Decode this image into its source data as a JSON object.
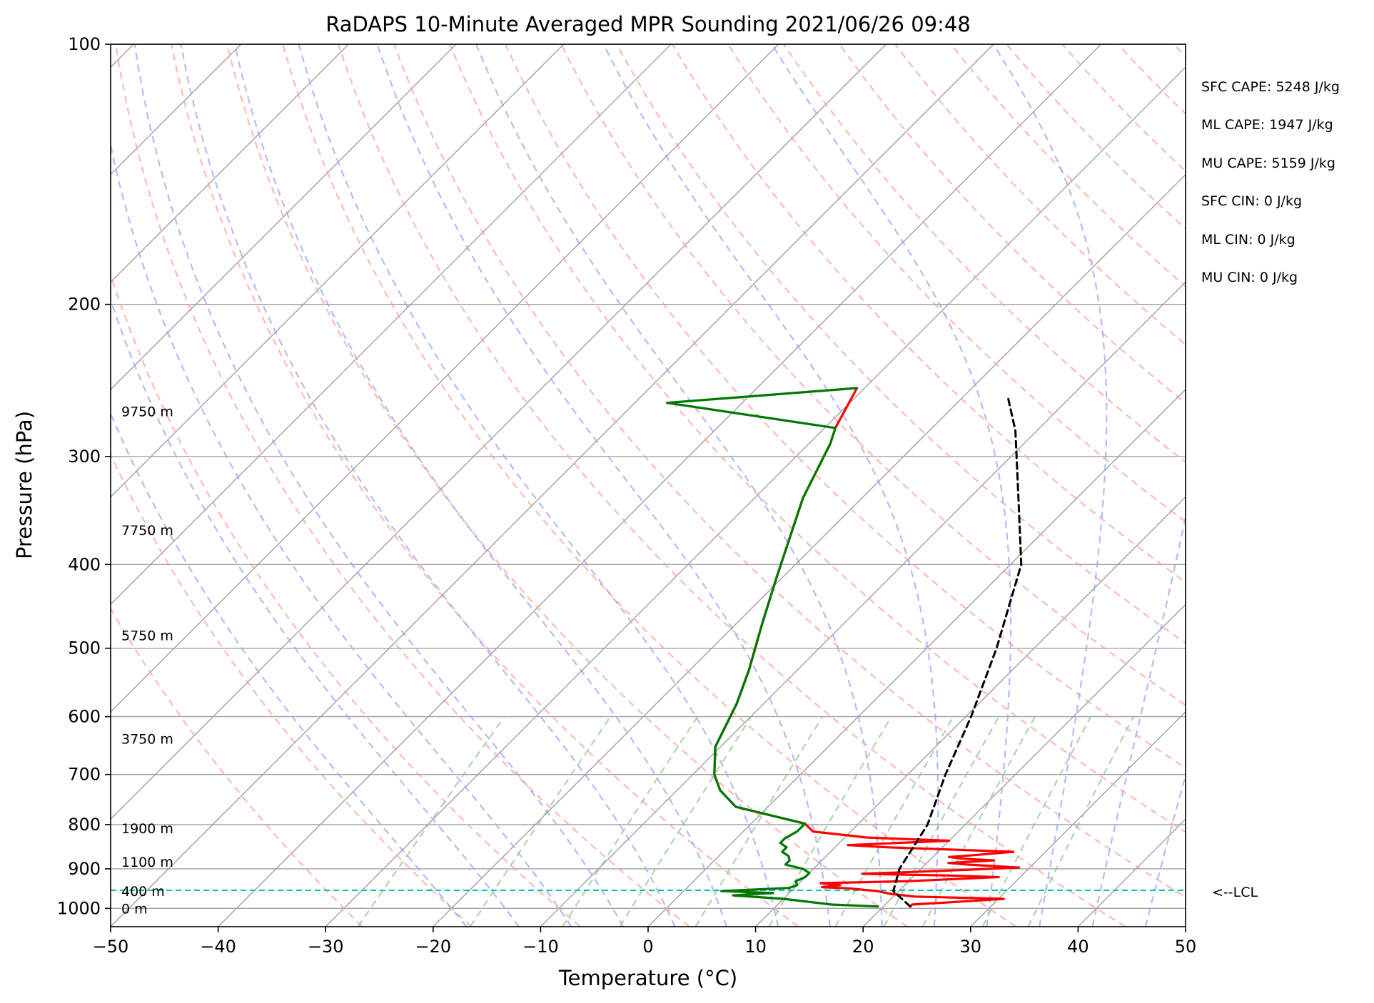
{
  "chart_data": {
    "type": "line",
    "title": "RaDAPS 10-Minute Averaged MPR Sounding 2021/06/26 09:48",
    "xlabel": "Temperature (°C)",
    "ylabel": "Pressure (hPa)",
    "xlim": [
      -50,
      50
    ],
    "ylim": [
      1050,
      100
    ],
    "y_scale": "log",
    "x_ticks": [
      "−50",
      "−40",
      "−30",
      "−20",
      "−10",
      "0",
      "10",
      "20",
      "30",
      "40",
      "50"
    ],
    "x_tick_values": [
      -50,
      -40,
      -30,
      -20,
      -10,
      0,
      10,
      20,
      30,
      40,
      50
    ],
    "y_ticks": [
      100,
      200,
      300,
      400,
      500,
      600,
      700,
      800,
      900,
      1000
    ],
    "grid": true,
    "colors": {
      "temperature": "#ff0000",
      "dewpoint": "#007700",
      "parcel": "#000000",
      "lcl": "#00bfbf",
      "isotherm": "#a0a0a0",
      "dry_adiabat": "#ffa0a0",
      "moist_adiabat": "#a0a0ff",
      "mixing_ratio": "#99cc99"
    },
    "series": [
      {
        "name": "Temperature",
        "points": [
          [
            22.5,
            995
          ],
          [
            22.5,
            990
          ],
          [
            28,
            980
          ],
          [
            30.5,
            975
          ],
          [
            22,
            969
          ],
          [
            19.5,
            962
          ],
          [
            18,
            955
          ],
          [
            15,
            948
          ],
          [
            12.5,
            945
          ],
          [
            14,
            940
          ],
          [
            12,
            935
          ],
          [
            20,
            930
          ],
          [
            28,
            920
          ],
          [
            23,
            916
          ],
          [
            15,
            912
          ],
          [
            22,
            905
          ],
          [
            29,
            897
          ],
          [
            24,
            890
          ],
          [
            22,
            886
          ],
          [
            26,
            880
          ],
          [
            23,
            876
          ],
          [
            21.5,
            872
          ],
          [
            24,
            867
          ],
          [
            27,
            860
          ],
          [
            15,
            850
          ],
          [
            11,
            845
          ],
          [
            20,
            835
          ],
          [
            12,
            828
          ],
          [
            10,
            823
          ],
          [
            6.5,
            815
          ],
          [
            5,
            798
          ],
          [
            -3,
            763
          ],
          [
            -6,
            730
          ],
          [
            -8,
            700
          ],
          [
            -10.5,
            650
          ],
          [
            -12.5,
            580
          ],
          [
            -14.5,
            530
          ],
          [
            -17.5,
            470
          ],
          [
            -20.5,
            415
          ],
          [
            -23.5,
            365
          ],
          [
            -25.5,
            335
          ],
          [
            -28,
            290
          ],
          [
            -29,
            278
          ],
          [
            -30.7,
            250
          ]
        ]
      },
      {
        "name": "Dewpoint",
        "points": [
          [
            19.5,
            995
          ],
          [
            15,
            990
          ],
          [
            10,
            975
          ],
          [
            5,
            966
          ],
          [
            6.5,
            963
          ],
          [
            8.5,
            960
          ],
          [
            3.5,
            955
          ],
          [
            9.5,
            947
          ],
          [
            10,
            940
          ],
          [
            9.5,
            930
          ],
          [
            10,
            920
          ],
          [
            10,
            910
          ],
          [
            9,
            900
          ],
          [
            7,
            890
          ],
          [
            7,
            880
          ],
          [
            6.5,
            870
          ],
          [
            5.5,
            860
          ],
          [
            5.5,
            850
          ],
          [
            4.5,
            840
          ],
          [
            4.5,
            830
          ],
          [
            5,
            815
          ],
          [
            5,
            798
          ],
          [
            -3,
            763
          ],
          [
            -6,
            730
          ],
          [
            -8,
            700
          ],
          [
            -10.5,
            650
          ],
          [
            -12.5,
            580
          ],
          [
            -14.5,
            530
          ],
          [
            -17.5,
            470
          ],
          [
            -20.5,
            415
          ],
          [
            -23.5,
            365
          ],
          [
            -25.5,
            335
          ],
          [
            -28,
            290
          ],
          [
            -29,
            278
          ],
          [
            -47,
            260
          ],
          [
            -30.7,
            250
          ]
        ]
      },
      {
        "name": "Parcel",
        "points": [
          [
            22.5,
            995
          ],
          [
            19.5,
            955
          ],
          [
            18,
            900
          ],
          [
            16.5,
            800
          ],
          [
            13.5,
            700
          ],
          [
            10.5,
            600
          ],
          [
            6.5,
            500
          ],
          [
            1,
            400
          ],
          [
            -6,
            330
          ],
          [
            -12,
            280
          ],
          [
            -16,
            255
          ]
        ]
      }
    ],
    "lcl": {
      "pressure": 953,
      "label": "<--LCL"
    },
    "height_labels": [
      {
        "text": "0 m",
        "pressure": 1000
      },
      {
        "text": "400 m",
        "pressure": 955
      },
      {
        "text": "1100 m",
        "pressure": 883
      },
      {
        "text": "1900 m",
        "pressure": 808
      },
      {
        "text": "3750 m",
        "pressure": 636
      },
      {
        "text": "5750 m",
        "pressure": 483
      },
      {
        "text": "7750 m",
        "pressure": 365
      },
      {
        "text": "9750 m",
        "pressure": 266
      }
    ],
    "annotations": [
      "SFC CAPE: 5248 J/kg",
      "ML CAPE: 1947 J/kg",
      "MU CAPE: 5159 J/kg",
      "SFC CIN: 0 J/kg",
      "ML CIN: 0 J/kg",
      "MU CIN: 0 J/kg"
    ]
  }
}
